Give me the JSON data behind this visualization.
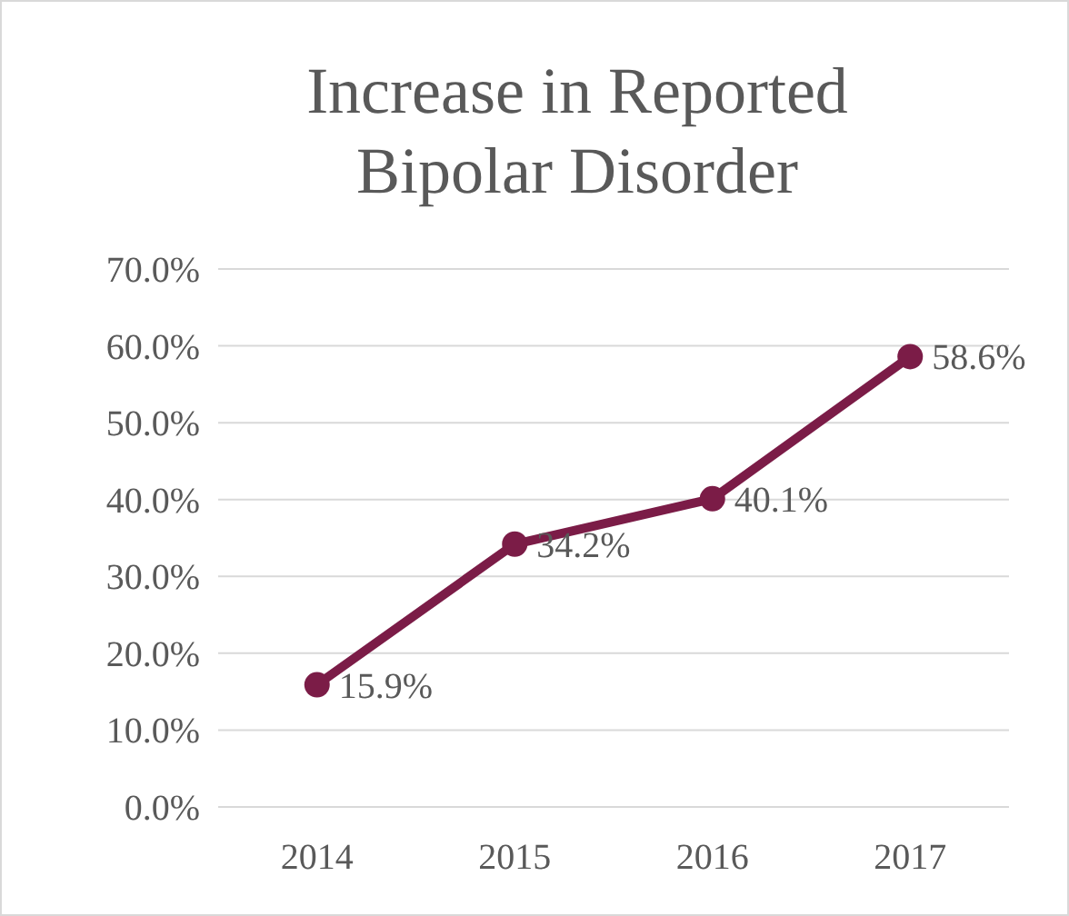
{
  "chart_data": {
    "type": "line",
    "title": "Increase in Reported Bipolar Disorder",
    "categories": [
      "2014",
      "2015",
      "2016",
      "2017"
    ],
    "series": [
      {
        "color": "#7b1c47",
        "values": [
          15.9,
          34.2,
          40.1,
          58.6
        ],
        "value_labels": [
          "15.9%",
          "34.2%",
          "40.1%",
          "58.6%"
        ]
      }
    ],
    "ylim": [
      0,
      70
    ],
    "yticks": [
      {
        "value": 0,
        "label": "0.0%"
      },
      {
        "value": 10,
        "label": "10.0%"
      },
      {
        "value": 20,
        "label": "20.0%"
      },
      {
        "value": 30,
        "label": "30.0%"
      },
      {
        "value": 40,
        "label": "40.0%"
      },
      {
        "value": 50,
        "label": "50.0%"
      },
      {
        "value": 60,
        "label": "60.0%"
      },
      {
        "value": 70,
        "label": "70.0%"
      }
    ],
    "grid": "y",
    "marker": "circle",
    "line_style": "solid"
  }
}
